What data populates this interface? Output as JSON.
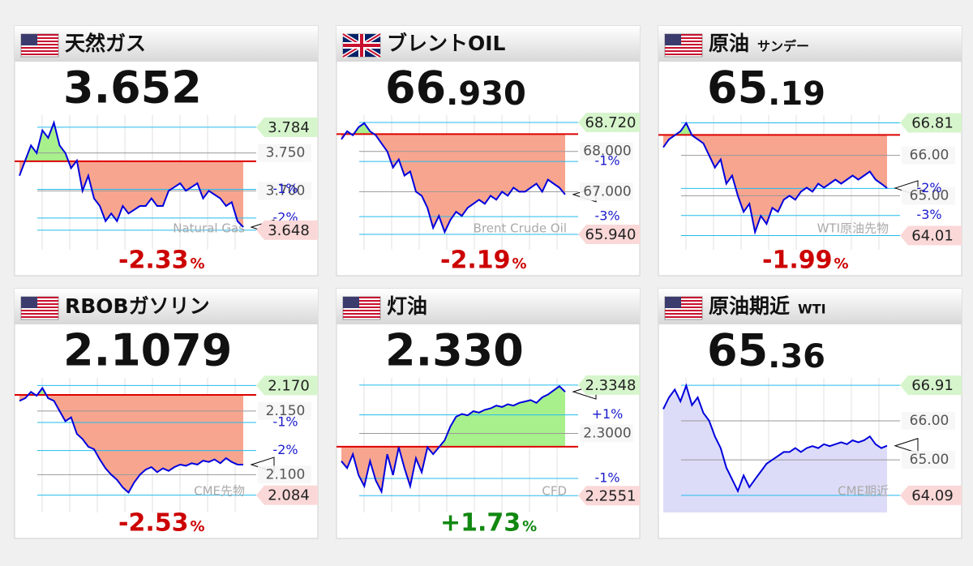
{
  "chart_data": [
    {
      "type": "line",
      "flag": "us",
      "title": "天然ガス",
      "price_main": "3.652",
      "change": "-2.33",
      "change_unit": "%",
      "change_color": "#cc0000",
      "watermark": "Natural Gas",
      "ylim": [
        3.635,
        3.8
      ],
      "reference": 3.739,
      "fill": "reference",
      "up_color": "#a8f08c",
      "down_color": "#f7a58f",
      "high": 3.784,
      "low": 3.648,
      "yticks": [
        {
          "value": 3.75,
          "label": "3.750"
        },
        {
          "value": 3.7,
          "label": "3.700"
        }
      ],
      "pct_ticks": [
        {
          "value": 3.702,
          "label": "-1%"
        },
        {
          "value": 3.664,
          "label": "-2%"
        }
      ],
      "color": "#0000dd",
      "values": [
        3.72,
        3.74,
        3.76,
        3.75,
        3.78,
        3.77,
        3.79,
        3.76,
        3.75,
        3.73,
        3.74,
        3.7,
        3.72,
        3.69,
        3.68,
        3.66,
        3.67,
        3.66,
        3.68,
        3.67,
        3.675,
        3.68,
        3.68,
        3.69,
        3.68,
        3.68,
        3.7,
        3.705,
        3.71,
        3.7,
        3.705,
        3.71,
        3.69,
        3.7,
        3.695,
        3.69,
        3.68,
        3.685,
        3.66,
        3.652
      ]
    },
    {
      "type": "line",
      "flag": "uk",
      "title": "ブレントOIL",
      "price_main": "66",
      "price_decimals": ".930",
      "change": "-2.19",
      "change_unit": "%",
      "change_color": "#cc0000",
      "watermark": "Brent Crude Oil",
      "ylim": [
        65.8,
        68.9
      ],
      "reference": 68.43,
      "fill": "reference",
      "up_color": "#a8f08c",
      "down_color": "#f7a58f",
      "high": {
        "value": 68.72,
        "label": "68.720"
      },
      "low": {
        "value": 65.94,
        "label": "65.940"
      },
      "yticks": [
        {
          "value": 68.0,
          "label": "68.000"
        },
        {
          "value": 67.0,
          "label": "67.000"
        }
      ],
      "pct_ticks": [
        {
          "value": 67.75,
          "label": "-1%"
        },
        {
          "value": 66.38,
          "label": "-3%"
        }
      ],
      "color": "#0000dd",
      "values": [
        68.3,
        68.5,
        68.4,
        68.6,
        68.7,
        68.5,
        68.4,
        68.2,
        68.0,
        67.6,
        67.8,
        67.4,
        67.5,
        67.0,
        66.9,
        66.6,
        66.1,
        66.4,
        66.0,
        66.3,
        66.5,
        66.4,
        66.6,
        66.7,
        66.8,
        66.7,
        66.9,
        66.8,
        67.0,
        66.9,
        67.1,
        67.0,
        67.0,
        67.1,
        67.2,
        67.0,
        67.3,
        67.2,
        67.1,
        66.93
      ]
    },
    {
      "type": "line",
      "flag": "us",
      "title": "原油",
      "subtitle": "サンデー",
      "price_main": "65",
      "price_decimals": ".19",
      "change": "-1.99",
      "change_unit": "%",
      "change_color": "#cc0000",
      "watermark": "WTI原油先物",
      "ylim": [
        63.9,
        67.0
      ],
      "reference": 66.51,
      "fill": "reference",
      "up_color": "#a8f08c",
      "down_color": "#f7a58f",
      "high": 66.81,
      "low": 64.01,
      "yticks": [
        {
          "value": 66.0,
          "label": "66.00"
        },
        {
          "value": 65.0,
          "label": "65.00"
        }
      ],
      "pct_ticks": [
        {
          "value": 65.18,
          "label": "-2%"
        },
        {
          "value": 64.51,
          "label": "-3%"
        }
      ],
      "color": "#0000dd",
      "values": [
        66.2,
        66.4,
        66.5,
        66.6,
        66.8,
        66.5,
        66.4,
        66.3,
        66.0,
        65.7,
        65.9,
        65.3,
        65.5,
        65.0,
        64.6,
        64.8,
        64.1,
        64.5,
        64.3,
        64.7,
        64.6,
        64.9,
        65.0,
        64.9,
        65.1,
        65.2,
        65.1,
        65.3,
        65.2,
        65.3,
        65.4,
        65.3,
        65.4,
        65.5,
        65.4,
        65.5,
        65.6,
        65.4,
        65.3,
        65.19
      ]
    },
    {
      "type": "line",
      "flag": "us",
      "title": "RBOBガソリン",
      "price_main": "2.1079",
      "change": "-2.53",
      "change_unit": "%",
      "change_color": "#cc0000",
      "watermark": "CME先物",
      "ylim": [
        2.078,
        2.176
      ],
      "reference": 2.1626,
      "fill": "reference",
      "up_color": "#a8f08c",
      "down_color": "#f7a58f",
      "high": {
        "value": 2.17,
        "label": "2.170"
      },
      "low": 2.084,
      "yticks": [
        {
          "value": 2.15,
          "label": "2.150"
        },
        {
          "value": 2.1,
          "label": "2.100"
        }
      ],
      "pct_ticks": [
        {
          "value": 2.141,
          "label": "-1%"
        },
        {
          "value": 2.119,
          "label": "-2%"
        }
      ],
      "color": "#0000dd",
      "values": [
        2.158,
        2.16,
        2.165,
        2.162,
        2.168,
        2.16,
        2.158,
        2.15,
        2.142,
        2.145,
        2.132,
        2.128,
        2.122,
        2.12,
        2.112,
        2.105,
        2.1,
        2.096,
        2.09,
        2.086,
        2.094,
        2.1,
        2.104,
        2.106,
        2.102,
        2.105,
        2.103,
        2.106,
        2.108,
        2.107,
        2.109,
        2.108,
        2.111,
        2.11,
        2.112,
        2.109,
        2.113,
        2.11,
        2.108,
        2.1079
      ]
    },
    {
      "type": "line",
      "flag": "us",
      "title": "灯油",
      "price_main": "2.330",
      "change": "+1.73",
      "change_unit": "%",
      "change_color": "#118811",
      "watermark": "CFD",
      "ylim": [
        2.25,
        2.34
      ],
      "reference": 2.2904,
      "fill": "reference",
      "up_color": "#a8f08c",
      "down_color": "#f7a58f",
      "high": 2.3348,
      "low": 2.2551,
      "yticks": [
        {
          "value": 2.3,
          "label": "2.3000"
        }
      ],
      "pct_ticks": [
        {
          "value": 2.3133,
          "label": "+1%"
        },
        {
          "value": 2.2675,
          "label": "-1%"
        }
      ],
      "color": "#0000dd",
      "values": [
        2.28,
        2.275,
        2.285,
        2.27,
        2.262,
        2.28,
        2.266,
        2.258,
        2.285,
        2.27,
        2.29,
        2.275,
        2.262,
        2.282,
        2.272,
        2.29,
        2.285,
        2.29,
        2.295,
        2.305,
        2.312,
        2.314,
        2.313,
        2.316,
        2.315,
        2.317,
        2.318,
        2.32,
        2.319,
        2.321,
        2.32,
        2.322,
        2.323,
        2.324,
        2.322,
        2.326,
        2.328,
        2.331,
        2.334,
        2.33
      ]
    },
    {
      "type": "line",
      "flag": "us",
      "title": "原油期近",
      "subtitle": "WTI",
      "price_main": "65",
      "price_decimals": ".36",
      "watermark": "CME期近",
      "ylim": [
        63.9,
        67.1
      ],
      "fill": "baseline",
      "area_color": "#dcdcf8",
      "high": 66.91,
      "low": 64.09,
      "yticks": [
        {
          "value": 66.0,
          "label": "66.00"
        },
        {
          "value": 65.0,
          "label": "65.00"
        }
      ],
      "pct_ticks": [],
      "color": "#0000dd",
      "values": [
        66.3,
        66.6,
        66.8,
        66.5,
        66.9,
        66.4,
        66.6,
        66.2,
        66.0,
        65.6,
        65.3,
        64.8,
        64.5,
        64.2,
        64.6,
        64.3,
        64.5,
        64.7,
        64.9,
        65.0,
        65.1,
        65.2,
        65.2,
        65.3,
        65.2,
        65.3,
        65.35,
        65.3,
        65.4,
        65.35,
        65.4,
        65.45,
        65.4,
        65.5,
        65.45,
        65.5,
        65.6,
        65.4,
        65.3,
        65.36
      ]
    }
  ]
}
